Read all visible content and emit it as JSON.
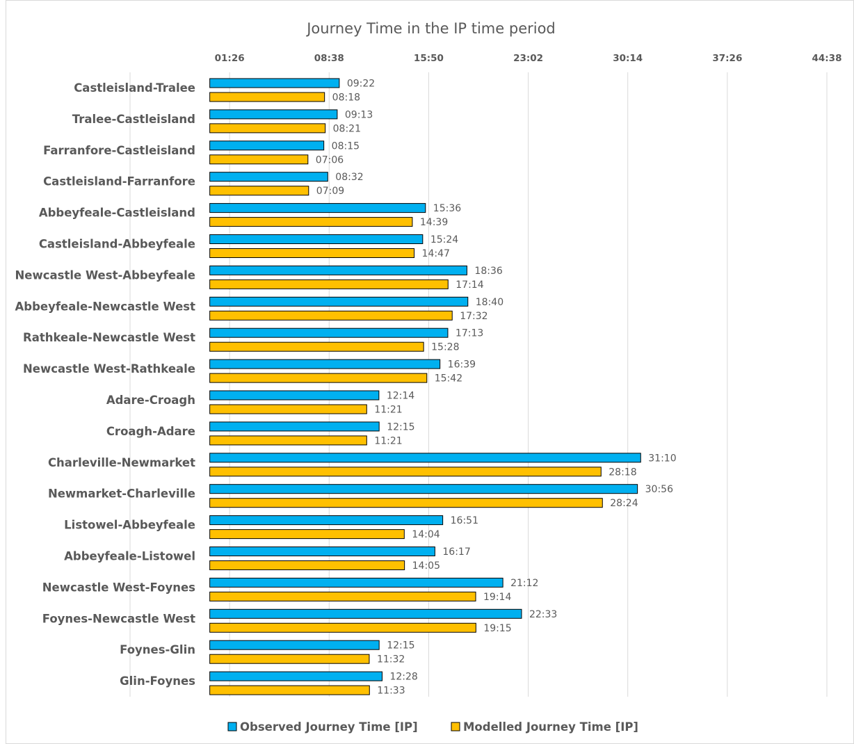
{
  "chart_data": {
    "type": "bar",
    "orientation": "horizontal",
    "title": "Journey Time in the IP time period",
    "x_tick_labels": [
      "01:26",
      "08:38",
      "15:50",
      "23:02",
      "30:14",
      "37:26",
      "44:38"
    ],
    "xlim_seconds": [
      -346,
      2678
    ],
    "x_tick_values_seconds": [
      86,
      518,
      950,
      1382,
      1814,
      2246,
      2678
    ],
    "grid": true,
    "legend_position": "bottom",
    "categories": [
      "Castleisland-Tralee",
      "Tralee-Castleisland",
      "Farranfore-Castleisland",
      "Castleisland-Farranfore",
      "Abbeyfeale-Castleisland",
      "Castleisland-Abbeyfeale",
      "Newcastle West-Abbeyfeale",
      "Abbeyfeale-Newcastle West",
      "Rathkeale-Newcastle West",
      "Newcastle West-Rathkeale",
      "Adare-Croagh",
      "Croagh-Adare",
      "Charleville-Newmarket",
      "Newmarket-Charleville",
      "Listowel-Abbeyfeale",
      "Abbeyfeale-Listowel",
      "Newcastle West-Foynes",
      "Foynes-Newcastle West",
      "Foynes-Glin",
      "Glin-Foynes"
    ],
    "series": [
      {
        "name": "Observed Journey Time [IP]",
        "color": "#00b0f0",
        "labels": [
          "09:22",
          "09:13",
          "08:15",
          "08:32",
          "15:36",
          "15:24",
          "18:36",
          "18:40",
          "17:13",
          "16:39",
          "12:14",
          "12:15",
          "31:10",
          "30:56",
          "16:51",
          "16:17",
          "21:12",
          "22:33",
          "12:15",
          "12:28"
        ]
      },
      {
        "name": "Modelled Journey Time [IP]",
        "color": "#ffc000",
        "labels": [
          "08:18",
          "08:21",
          "07:06",
          "07:09",
          "14:39",
          "14:47",
          "17:14",
          "17:32",
          "15:28",
          "15:42",
          "11:21",
          "11:21",
          "28:18",
          "28:24",
          "14:04",
          "14:05",
          "19:14",
          "19:15",
          "11:32",
          "11:33"
        ]
      }
    ]
  }
}
